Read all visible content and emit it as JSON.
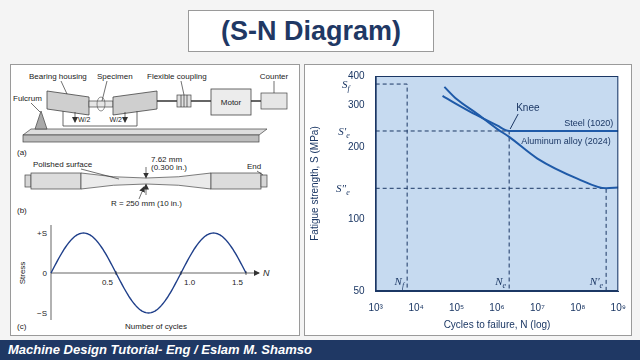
{
  "slide": {
    "title": "(S-N Diagram)",
    "footer": "Machine Design Tutorial- Eng / Eslam M. Shamso"
  },
  "diagram": {
    "a": {
      "caption": "(a)",
      "bearing_housing": "Bearing housing",
      "specimen": "Specimen",
      "flexible_coupling": "Flexible coupling",
      "counter": "Counter",
      "fulcrum": "Fulcrum",
      "load_left": "W/2",
      "load_right": "W/2",
      "motor": "Motor"
    },
    "b": {
      "caption": "(b)",
      "polished": "Polished surface",
      "diameter": "7.62 mm",
      "diameter_in": "(0.300 in.)",
      "end": "End",
      "radius": "R = 250 mm (10 in.)"
    },
    "c": {
      "caption": "(c)",
      "y_label": "Stress",
      "y_ticks": [
        "+S",
        "0",
        "−S"
      ],
      "xlim": [
        0,
        1.6
      ],
      "x_ticks": [
        0.5,
        {
          "value": 1,
          "label": "1.0"
        },
        1.5
      ],
      "x_end": "N",
      "x_label": "Number of cycles"
    }
  },
  "chart_data": {
    "type": "line",
    "x_label": "Cycles to failure, N (log)",
    "y_label": "Fatigue strength, S (MPa)",
    "log": true,
    "grid": false,
    "xlim": [
      1000,
      1000000000
    ],
    "xticks": [
      {
        "value": 1000,
        "label": "10³"
      },
      {
        "value": 10000,
        "label": "10⁴"
      },
      {
        "value": 100000,
        "label": "10⁵"
      },
      {
        "value": 1000000,
        "label": "10⁶"
      },
      {
        "value": 10000000,
        "label": "10⁷"
      },
      {
        "value": 100000000,
        "label": "10⁸"
      },
      {
        "value": 1000000000,
        "label": "10⁹"
      }
    ],
    "ylim": [
      50,
      400
    ],
    "yticks": [
      50,
      100,
      200,
      300,
      400
    ],
    "series": [
      {
        "name": "Steel (1020)",
        "color": "#1f5aa8",
        "x": [
          45000,
          100000,
          300000,
          1000000,
          2000000,
          10000000,
          100000000,
          1000000000
        ],
        "values": [
          330,
          305,
          275,
          248,
          235,
          235,
          235,
          235
        ]
      },
      {
        "name": "Aluminum alloy (2024)",
        "color": "#1f5aa8",
        "x": [
          50000,
          100000,
          300000,
          1000000,
          2000000,
          10000000,
          100000000,
          500000000,
          1000000000
        ],
        "values": [
          360,
          320,
          280,
          240,
          222,
          180,
          148,
          135,
          136
        ]
      }
    ],
    "reference_lines": [
      {
        "x": 6000,
        "y": 370,
        "x_label": {
          "symbol": "N",
          "subscript": "f"
        },
        "y_label": {
          "symbol": "S",
          "subscript": "f"
        }
      },
      {
        "x": 2000000,
        "y": 235,
        "x_label": {
          "symbol": "N",
          "subscript": "e"
        },
        "y_label": {
          "symbol": "S′",
          "subscript": "e"
        }
      },
      {
        "x": 500000000,
        "y": 135,
        "x_label": {
          "symbol": "N′",
          "subscript": "e"
        },
        "y_label": {
          "symbol": "S″",
          "subscript": "e"
        }
      }
    ],
    "annotations": [
      {
        "text": "Knee",
        "x": 2000000,
        "y": 235
      }
    ]
  }
}
